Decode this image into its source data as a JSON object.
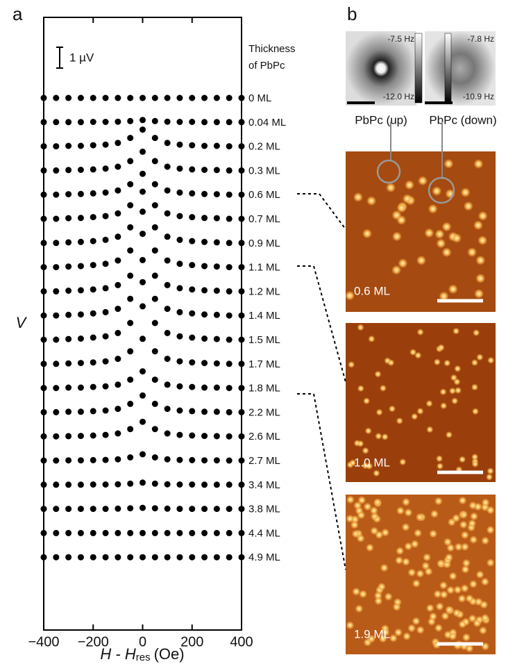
{
  "panel_labels": [
    "a",
    "b"
  ],
  "chart_data": {
    "type": "scatter",
    "y_label": "V",
    "x_label": {
      "main": "H - H",
      "sub": "res",
      "unit": "(Oe)"
    },
    "legend_title": [
      "Thickness",
      "of PbPc"
    ],
    "scale_bar": {
      "value": 1,
      "label": "1 µV"
    },
    "color": "#000000",
    "xlim": [
      -400,
      400
    ],
    "xticks": [
      {
        "value": -400,
        "label": "−400"
      },
      {
        "value": -200,
        "label": "−200"
      },
      0,
      200,
      400
    ],
    "x": [
      -400,
      -350,
      -300,
      -250,
      -200,
      -150,
      -100,
      -50,
      0,
      50,
      100,
      150,
      200,
      250,
      300,
      350,
      400
    ],
    "series": [
      {
        "name": "0 ML",
        "values": [
          0,
          0,
          0,
          0,
          0,
          0,
          0,
          0,
          0,
          0,
          0,
          0,
          0,
          0,
          0,
          0,
          0
        ]
      },
      {
        "name": "0.04 ML",
        "values": [
          0,
          0,
          0,
          0,
          0.01,
          0.01,
          0.02,
          0.05,
          0.1,
          0.05,
          0.02,
          0.01,
          0.01,
          0,
          0,
          0,
          0
        ]
      },
      {
        "name": "0.2 ML",
        "values": [
          0,
          0,
          0.02,
          0.02,
          0.05,
          0.08,
          0.16,
          0.4,
          0.8,
          0.4,
          0.16,
          0.08,
          0.05,
          0.02,
          0.02,
          0,
          0
        ]
      },
      {
        "name": "0.3 ML",
        "values": [
          0,
          0,
          0.02,
          0.03,
          0.05,
          0.09,
          0.18,
          0.45,
          0.9,
          0.45,
          0.18,
          0.09,
          0.05,
          0.03,
          0.02,
          0,
          0
        ]
      },
      {
        "name": "0.6 ML",
        "values": [
          0,
          0,
          0.02,
          0.03,
          0.06,
          0.1,
          0.2,
          0.5,
          1,
          0.5,
          0.2,
          0.1,
          0.06,
          0.03,
          0.02,
          0,
          0
        ]
      },
      {
        "name": "0.7 ML",
        "values": [
          0,
          0,
          0.03,
          0.04,
          0.08,
          0.13,
          0.26,
          0.65,
          1.3,
          0.65,
          0.26,
          0.13,
          0.08,
          0.04,
          0.03,
          0,
          0
        ]
      },
      {
        "name": "0.9 ML",
        "values": [
          0,
          0,
          0.03,
          0.05,
          0.09,
          0.15,
          0.3,
          0.75,
          1.5,
          0.75,
          0.3,
          0.15,
          0.09,
          0.05,
          0.03,
          0,
          0
        ]
      },
      {
        "name": "1.1 ML",
        "values": [
          0,
          0,
          0.03,
          0.05,
          0.1,
          0.16,
          0.32,
          0.8,
          1.6,
          0.8,
          0.32,
          0.16,
          0.1,
          0.05,
          0.03,
          0,
          0
        ]
      },
      {
        "name": "1.2 ML",
        "values": [
          0,
          0,
          0.03,
          0.05,
          0.09,
          0.15,
          0.3,
          0.75,
          1.5,
          0.75,
          0.3,
          0.15,
          0.09,
          0.05,
          0.03,
          0,
          0
        ]
      },
      {
        "name": "1.4 ML",
        "values": [
          0,
          0,
          0.03,
          0.05,
          0.1,
          0.16,
          0.32,
          0.8,
          1.6,
          0.8,
          0.32,
          0.16,
          0.1,
          0.05,
          0.03,
          0,
          0
        ]
      },
      {
        "name": "1.5 ML",
        "values": [
          0,
          0,
          0.03,
          0.05,
          0.1,
          0.16,
          0.32,
          0.8,
          1.6,
          0.8,
          0.32,
          0.16,
          0.1,
          0.05,
          0.03,
          0,
          0
        ]
      },
      {
        "name": "1.7 ML",
        "values": [
          0,
          0,
          0.02,
          0.04,
          0.07,
          0.12,
          0.24,
          0.6,
          1.2,
          0.6,
          0.24,
          0.12,
          0.07,
          0.04,
          0.02,
          0,
          0
        ]
      },
      {
        "name": "1.8 ML",
        "values": [
          0,
          0,
          0.02,
          0.02,
          0.05,
          0.08,
          0.16,
          0.4,
          0.8,
          0.4,
          0.16,
          0.08,
          0.05,
          0.02,
          0.02,
          0,
          0
        ]
      },
      {
        "name": "2.2 ML",
        "values": [
          0,
          0,
          0.02,
          0.02,
          0.05,
          0.08,
          0.16,
          0.4,
          0.8,
          0.4,
          0.16,
          0.08,
          0.05,
          0.02,
          0.02,
          0,
          0
        ]
      },
      {
        "name": "2.6 ML",
        "values": [
          0,
          0,
          0.01,
          0.02,
          0.04,
          0.07,
          0.14,
          0.35,
          0.7,
          0.35,
          0.14,
          0.07,
          0.04,
          0.02,
          0.01,
          0,
          0
        ]
      },
      {
        "name": "2.7 ML",
        "values": [
          0,
          0,
          0.01,
          0.01,
          0.02,
          0.03,
          0.06,
          0.15,
          0.3,
          0.15,
          0.06,
          0.03,
          0.02,
          0.01,
          0.01,
          0,
          0
        ]
      },
      {
        "name": "3.4 ML",
        "values": [
          0,
          0,
          0,
          0,
          0.01,
          0.01,
          0.02,
          0.05,
          0.1,
          0.05,
          0.02,
          0.01,
          0.01,
          0,
          0,
          0,
          0
        ]
      },
      {
        "name": "3.8 ML",
        "values": [
          0,
          0,
          0,
          0,
          0,
          0,
          0.01,
          0.03,
          0.05,
          0.03,
          0.01,
          0,
          0,
          0,
          0,
          0,
          0
        ]
      },
      {
        "name": "4.4 ML",
        "values": [
          0,
          0,
          0,
          0,
          0,
          0,
          0,
          0,
          0,
          0,
          0,
          0,
          0,
          0,
          0,
          0,
          0
        ]
      },
      {
        "name": "4.9 ML",
        "values": [
          0,
          0,
          0,
          0,
          0,
          0,
          0,
          0,
          0,
          0,
          0,
          0,
          0,
          0,
          0,
          0,
          0
        ]
      }
    ]
  },
  "panel_b": {
    "up": {
      "top": "-7.5 Hz",
      "bottom": "-12.0 Hz",
      "label": "PbPc (up)"
    },
    "down": {
      "top": "-7.8 Hz",
      "bottom": "-10.9 Hz",
      "label": "PbPc (down)"
    },
    "images": [
      "0.6 ML",
      "1.0 ML",
      "1.9 ML"
    ]
  }
}
